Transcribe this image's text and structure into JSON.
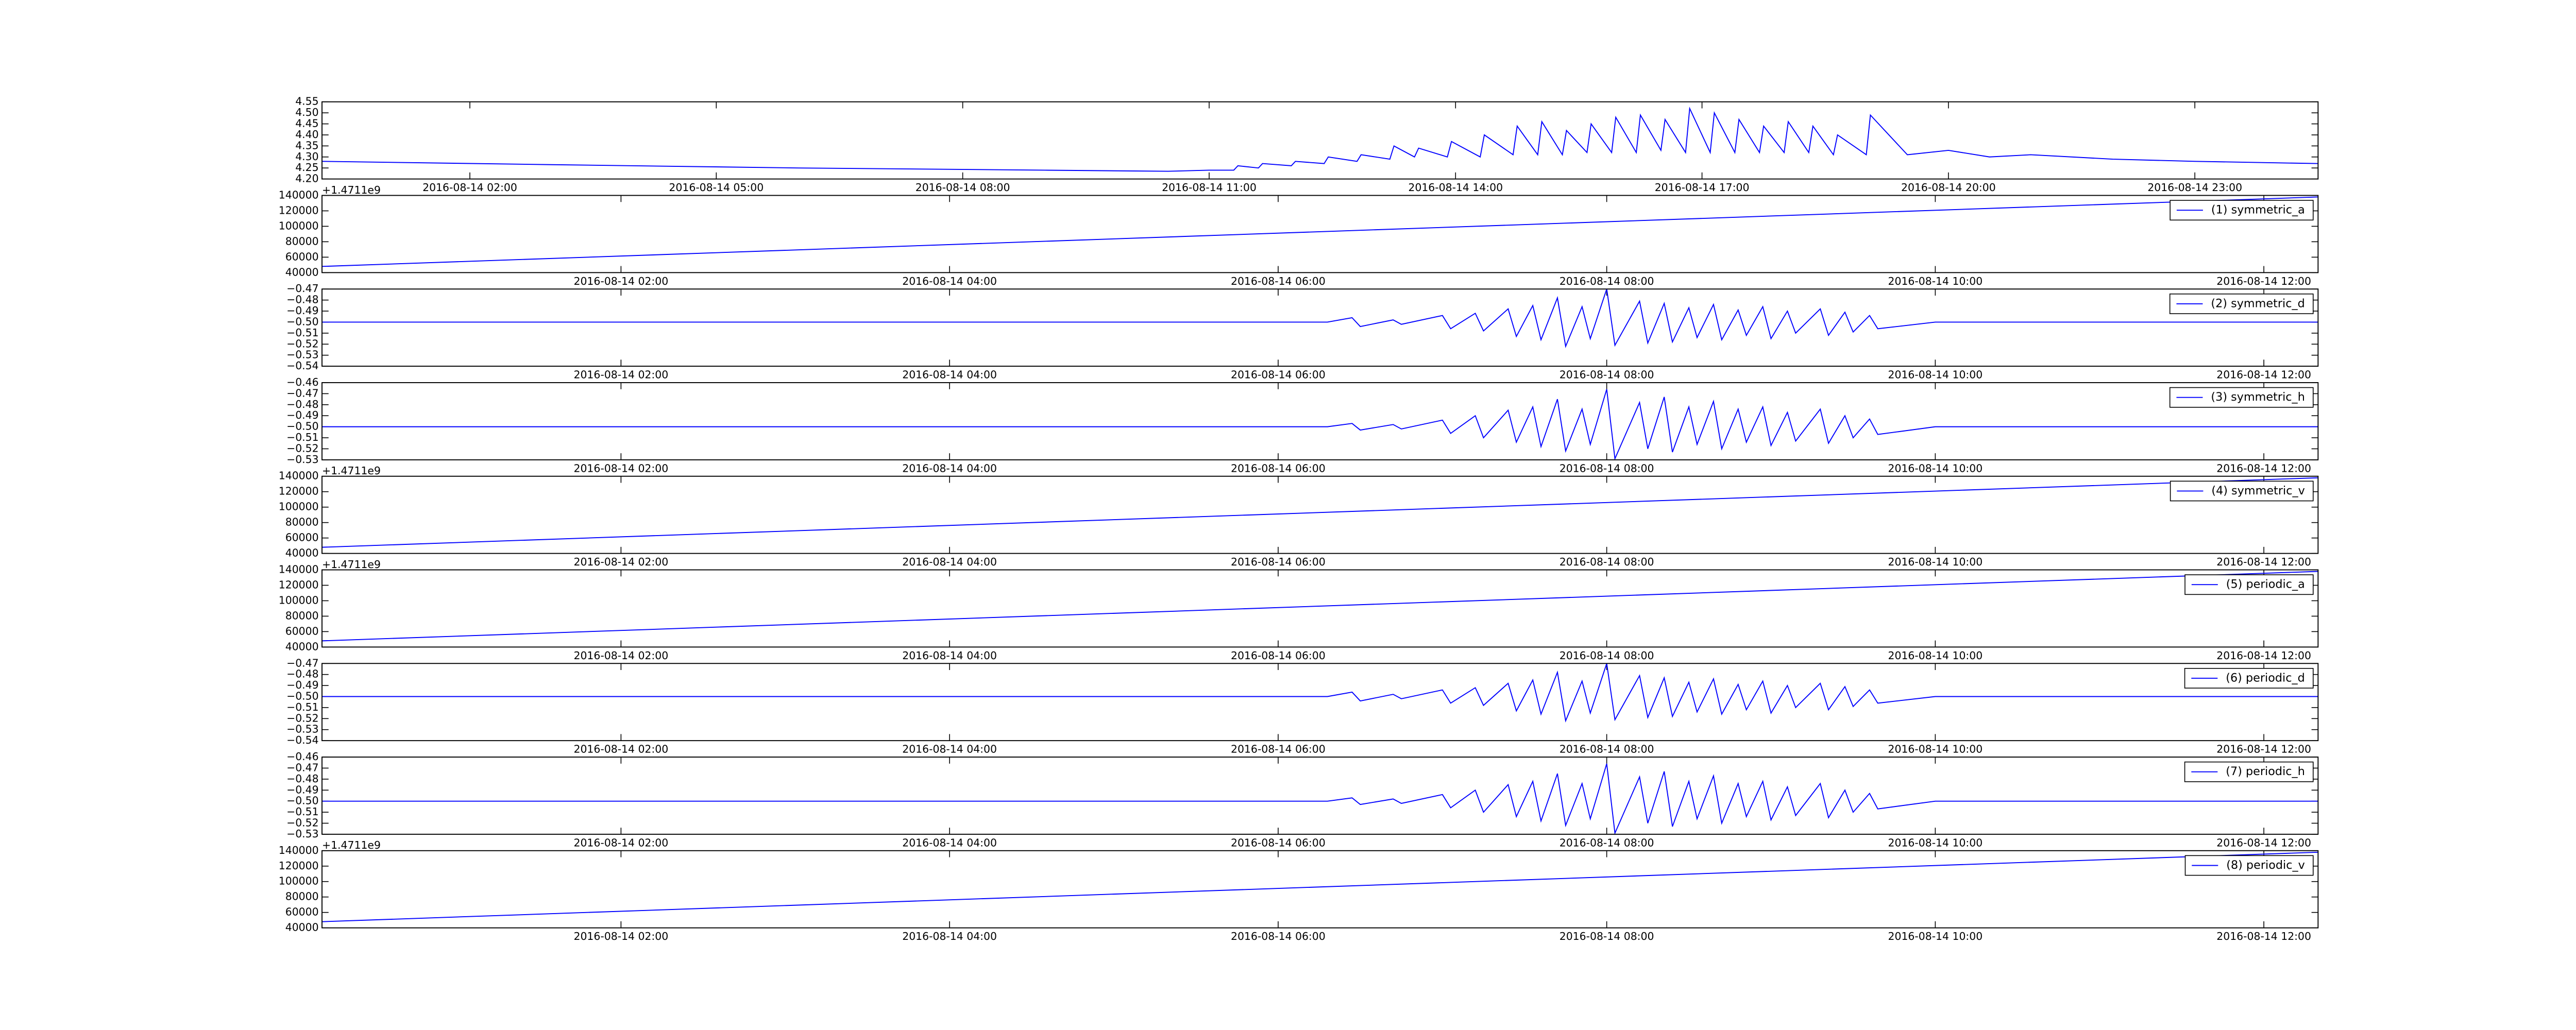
{
  "chart_data": [
    {
      "type": "line",
      "xlim": [
        0.2,
        24.5
      ],
      "ylim": [
        4.2,
        4.55
      ],
      "yticks": [
        {
          "value": 4.2,
          "label": "4.20"
        },
        {
          "value": 4.25,
          "label": "4.25"
        },
        {
          "value": 4.3,
          "label": "4.30"
        },
        {
          "value": 4.35,
          "label": "4.35"
        },
        {
          "value": 4.4,
          "label": "4.40"
        },
        {
          "value": 4.45,
          "label": "4.45"
        },
        {
          "value": 4.5,
          "label": "4.50"
        },
        {
          "value": 4.55,
          "label": "4.55"
        }
      ],
      "xticks": [
        {
          "value": 2,
          "label": "2016-08-14 02:00"
        },
        {
          "value": 5,
          "label": "2016-08-14 05:00"
        },
        {
          "value": 8,
          "label": "2016-08-14 08:00"
        },
        {
          "value": 11,
          "label": "2016-08-14 11:00"
        },
        {
          "value": 14,
          "label": "2016-08-14 14:00"
        },
        {
          "value": 17,
          "label": "2016-08-14 17:00"
        },
        {
          "value": 20,
          "label": "2016-08-14 20:00"
        },
        {
          "value": 23,
          "label": "2016-08-14 23:00"
        }
      ],
      "x": [
        0.2,
        3,
        6,
        9,
        10.5,
        11,
        11.3,
        11.35,
        11.6,
        11.65,
        12,
        12.05,
        12.4,
        12.45,
        12.8,
        12.85,
        13.2,
        13.25,
        13.5,
        13.55,
        13.9,
        13.95,
        14.3,
        14.35,
        14.7,
        14.75,
        15,
        15.05,
        15.3,
        15.35,
        15.6,
        15.65,
        15.9,
        15.95,
        16.2,
        16.25,
        16.5,
        16.55,
        16.8,
        16.85,
        17.1,
        17.15,
        17.4,
        17.45,
        17.7,
        17.75,
        18,
        18.05,
        18.3,
        18.35,
        18.6,
        18.65,
        19,
        19.05,
        19.5,
        20,
        20.5,
        21,
        22,
        23,
        24.5
      ],
      "series": [
        {
          "color": "#0000ff",
          "values": [
            4.28,
            4.265,
            4.25,
            4.24,
            4.235,
            4.24,
            4.24,
            4.26,
            4.25,
            4.27,
            4.26,
            4.28,
            4.27,
            4.3,
            4.28,
            4.31,
            4.29,
            4.35,
            4.3,
            4.34,
            4.3,
            4.37,
            4.3,
            4.4,
            4.31,
            4.44,
            4.31,
            4.46,
            4.31,
            4.42,
            4.32,
            4.45,
            4.32,
            4.48,
            4.32,
            4.49,
            4.33,
            4.47,
            4.32,
            4.52,
            4.32,
            4.5,
            4.32,
            4.47,
            4.32,
            4.44,
            4.32,
            4.46,
            4.32,
            4.44,
            4.31,
            4.4,
            4.31,
            4.49,
            4.31,
            4.33,
            4.3,
            4.31,
            4.29,
            4.28,
            4.27
          ]
        }
      ]
    },
    {
      "type": "line",
      "xlim": [
        0.18,
        12.33
      ],
      "ylim": [
        40000,
        140000
      ],
      "y_offset_text": "+1.4711e9",
      "legend": "upper right",
      "yticks": [
        40000,
        60000,
        80000,
        100000,
        120000,
        140000
      ],
      "xticks": [
        {
          "value": 2,
          "label": "2016-08-14 02:00"
        },
        {
          "value": 4,
          "label": "2016-08-14 04:00"
        },
        {
          "value": 6,
          "label": "2016-08-14 06:00"
        },
        {
          "value": 8,
          "label": "2016-08-14 08:00"
        },
        {
          "value": 10,
          "label": "2016-08-14 10:00"
        },
        {
          "value": 12,
          "label": "2016-08-14 12:00"
        }
      ],
      "x": [
        0.18,
        12.33
      ],
      "series": [
        {
          "name": "(1) symmetric_a",
          "color": "#0000ff",
          "values": [
            48000,
            138000
          ]
        }
      ]
    },
    {
      "type": "line",
      "xlim": [
        0.18,
        12.33
      ],
      "ylim": [
        -0.54,
        -0.47
      ],
      "legend": "upper right",
      "yticks": [
        {
          "value": -0.54,
          "label": "−0.54"
        },
        {
          "value": -0.53,
          "label": "−0.53"
        },
        {
          "value": -0.52,
          "label": "−0.52"
        },
        {
          "value": -0.51,
          "label": "−0.51"
        },
        {
          "value": -0.5,
          "label": "−0.50"
        },
        {
          "value": -0.49,
          "label": "−0.49"
        },
        {
          "value": -0.48,
          "label": "−0.48"
        },
        {
          "value": -0.47,
          "label": "−0.47"
        }
      ],
      "xticks": [
        {
          "value": 2,
          "label": "2016-08-14 02:00"
        },
        {
          "value": 4,
          "label": "2016-08-14 04:00"
        },
        {
          "value": 6,
          "label": "2016-08-14 06:00"
        },
        {
          "value": 8,
          "label": "2016-08-14 08:00"
        },
        {
          "value": 10,
          "label": "2016-08-14 10:00"
        },
        {
          "value": 12,
          "label": "2016-08-14 12:00"
        }
      ],
      "x": [
        0.18,
        6.3,
        6.45,
        6.5,
        6.7,
        6.75,
        7.0,
        7.05,
        7.2,
        7.25,
        7.4,
        7.45,
        7.55,
        7.6,
        7.7,
        7.75,
        7.85,
        7.9,
        8.0,
        8.05,
        8.2,
        8.25,
        8.35,
        8.4,
        8.5,
        8.55,
        8.65,
        8.7,
        8.8,
        8.85,
        8.95,
        9.0,
        9.1,
        9.15,
        9.3,
        9.35,
        9.45,
        9.5,
        9.6,
        9.65,
        10.0,
        12.33
      ],
      "series": [
        {
          "name": "(2) symmetric_d",
          "color": "#0000ff",
          "values": [
            -0.5,
            -0.5,
            -0.496,
            -0.504,
            -0.498,
            -0.502,
            -0.494,
            -0.506,
            -0.492,
            -0.508,
            -0.488,
            -0.513,
            -0.485,
            -0.516,
            -0.478,
            -0.522,
            -0.486,
            -0.515,
            -0.47,
            -0.521,
            -0.481,
            -0.519,
            -0.483,
            -0.518,
            -0.487,
            -0.514,
            -0.484,
            -0.516,
            -0.489,
            -0.512,
            -0.486,
            -0.515,
            -0.49,
            -0.51,
            -0.488,
            -0.512,
            -0.491,
            -0.509,
            -0.494,
            -0.506,
            -0.5,
            -0.5
          ]
        }
      ]
    },
    {
      "type": "line",
      "xlim": [
        0.18,
        12.33
      ],
      "ylim": [
        -0.53,
        -0.46
      ],
      "legend": "upper right",
      "yticks": [
        {
          "value": -0.53,
          "label": "−0.53"
        },
        {
          "value": -0.52,
          "label": "−0.52"
        },
        {
          "value": -0.51,
          "label": "−0.51"
        },
        {
          "value": -0.5,
          "label": "−0.50"
        },
        {
          "value": -0.49,
          "label": "−0.49"
        },
        {
          "value": -0.48,
          "label": "−0.48"
        },
        {
          "value": -0.47,
          "label": "−0.47"
        },
        {
          "value": -0.46,
          "label": "−0.46"
        }
      ],
      "xticks": [
        {
          "value": 2,
          "label": "2016-08-14 02:00"
        },
        {
          "value": 4,
          "label": "2016-08-14 04:00"
        },
        {
          "value": 6,
          "label": "2016-08-14 06:00"
        },
        {
          "value": 8,
          "label": "2016-08-14 08:00"
        },
        {
          "value": 10,
          "label": "2016-08-14 10:00"
        },
        {
          "value": 12,
          "label": "2016-08-14 12:00"
        }
      ],
      "x": [
        0.18,
        6.3,
        6.45,
        6.5,
        6.7,
        6.75,
        7.0,
        7.05,
        7.2,
        7.25,
        7.4,
        7.45,
        7.55,
        7.6,
        7.7,
        7.75,
        7.85,
        7.9,
        8.0,
        8.05,
        8.2,
        8.25,
        8.35,
        8.4,
        8.5,
        8.55,
        8.65,
        8.7,
        8.8,
        8.85,
        8.95,
        9.0,
        9.1,
        9.15,
        9.3,
        9.35,
        9.45,
        9.5,
        9.6,
        9.65,
        10.0,
        12.33
      ],
      "series": [
        {
          "name": "(3) symmetric_h",
          "color": "#0000ff",
          "values": [
            -0.5,
            -0.5,
            -0.497,
            -0.503,
            -0.498,
            -0.502,
            -0.494,
            -0.506,
            -0.49,
            -0.51,
            -0.485,
            -0.514,
            -0.482,
            -0.518,
            -0.475,
            -0.522,
            -0.484,
            -0.516,
            -0.466,
            -0.529,
            -0.478,
            -0.52,
            -0.473,
            -0.523,
            -0.482,
            -0.516,
            -0.477,
            -0.52,
            -0.484,
            -0.514,
            -0.482,
            -0.517,
            -0.487,
            -0.513,
            -0.484,
            -0.515,
            -0.49,
            -0.51,
            -0.493,
            -0.507,
            -0.5,
            -0.5
          ]
        }
      ]
    },
    {
      "type": "line",
      "xlim": [
        0.18,
        12.33
      ],
      "ylim": [
        40000,
        140000
      ],
      "y_offset_text": "+1.4711e9",
      "legend": "upper right",
      "yticks": [
        40000,
        60000,
        80000,
        100000,
        120000,
        140000
      ],
      "xticks": [
        {
          "value": 2,
          "label": "2016-08-14 02:00"
        },
        {
          "value": 4,
          "label": "2016-08-14 04:00"
        },
        {
          "value": 6,
          "label": "2016-08-14 06:00"
        },
        {
          "value": 8,
          "label": "2016-08-14 08:00"
        },
        {
          "value": 10,
          "label": "2016-08-14 10:00"
        },
        {
          "value": 12,
          "label": "2016-08-14 12:00"
        }
      ],
      "x": [
        0.18,
        12.33
      ],
      "series": [
        {
          "name": "(4) symmetric_v",
          "color": "#0000ff",
          "values": [
            48000,
            138000
          ]
        }
      ]
    },
    {
      "type": "line",
      "xlim": [
        0.18,
        12.33
      ],
      "ylim": [
        40000,
        140000
      ],
      "y_offset_text": "+1.4711e9",
      "legend": "upper right",
      "yticks": [
        40000,
        60000,
        80000,
        100000,
        120000,
        140000
      ],
      "xticks": [
        {
          "value": 2,
          "label": "2016-08-14 02:00"
        },
        {
          "value": 4,
          "label": "2016-08-14 04:00"
        },
        {
          "value": 6,
          "label": "2016-08-14 06:00"
        },
        {
          "value": 8,
          "label": "2016-08-14 08:00"
        },
        {
          "value": 10,
          "label": "2016-08-14 10:00"
        },
        {
          "value": 12,
          "label": "2016-08-14 12:00"
        }
      ],
      "x": [
        0.18,
        12.33
      ],
      "series": [
        {
          "name": "(5) periodic_a",
          "color": "#0000ff",
          "values": [
            48000,
            138000
          ]
        }
      ]
    },
    {
      "type": "line",
      "xlim": [
        0.18,
        12.33
      ],
      "ylim": [
        -0.54,
        -0.47
      ],
      "legend": "upper right",
      "yticks": [
        {
          "value": -0.54,
          "label": "−0.54"
        },
        {
          "value": -0.53,
          "label": "−0.53"
        },
        {
          "value": -0.52,
          "label": "−0.52"
        },
        {
          "value": -0.51,
          "label": "−0.51"
        },
        {
          "value": -0.5,
          "label": "−0.50"
        },
        {
          "value": -0.49,
          "label": "−0.49"
        },
        {
          "value": -0.48,
          "label": "−0.48"
        },
        {
          "value": -0.47,
          "label": "−0.47"
        }
      ],
      "xticks": [
        {
          "value": 2,
          "label": "2016-08-14 02:00"
        },
        {
          "value": 4,
          "label": "2016-08-14 04:00"
        },
        {
          "value": 6,
          "label": "2016-08-14 06:00"
        },
        {
          "value": 8,
          "label": "2016-08-14 08:00"
        },
        {
          "value": 10,
          "label": "2016-08-14 10:00"
        },
        {
          "value": 12,
          "label": "2016-08-14 12:00"
        }
      ],
      "x": [
        0.18,
        6.3,
        6.45,
        6.5,
        6.7,
        6.75,
        7.0,
        7.05,
        7.2,
        7.25,
        7.4,
        7.45,
        7.55,
        7.6,
        7.7,
        7.75,
        7.85,
        7.9,
        8.0,
        8.05,
        8.2,
        8.25,
        8.35,
        8.4,
        8.5,
        8.55,
        8.65,
        8.7,
        8.8,
        8.85,
        8.95,
        9.0,
        9.1,
        9.15,
        9.3,
        9.35,
        9.45,
        9.5,
        9.6,
        9.65,
        10.0,
        12.33
      ],
      "series": [
        {
          "name": "(6) periodic_d",
          "color": "#0000ff",
          "values": [
            -0.5,
            -0.5,
            -0.496,
            -0.504,
            -0.498,
            -0.502,
            -0.494,
            -0.506,
            -0.492,
            -0.508,
            -0.488,
            -0.513,
            -0.485,
            -0.516,
            -0.478,
            -0.522,
            -0.486,
            -0.515,
            -0.47,
            -0.521,
            -0.481,
            -0.519,
            -0.483,
            -0.518,
            -0.487,
            -0.514,
            -0.484,
            -0.516,
            -0.489,
            -0.512,
            -0.486,
            -0.515,
            -0.49,
            -0.51,
            -0.488,
            -0.512,
            -0.491,
            -0.509,
            -0.494,
            -0.506,
            -0.5,
            -0.5
          ]
        }
      ]
    },
    {
      "type": "line",
      "xlim": [
        0.18,
        12.33
      ],
      "ylim": [
        -0.53,
        -0.46
      ],
      "legend": "upper right",
      "yticks": [
        {
          "value": -0.53,
          "label": "−0.53"
        },
        {
          "value": -0.52,
          "label": "−0.52"
        },
        {
          "value": -0.51,
          "label": "−0.51"
        },
        {
          "value": -0.5,
          "label": "−0.50"
        },
        {
          "value": -0.49,
          "label": "−0.49"
        },
        {
          "value": -0.48,
          "label": "−0.48"
        },
        {
          "value": -0.47,
          "label": "−0.47"
        },
        {
          "value": -0.46,
          "label": "−0.46"
        }
      ],
      "xticks": [
        {
          "value": 2,
          "label": "2016-08-14 02:00"
        },
        {
          "value": 4,
          "label": "2016-08-14 04:00"
        },
        {
          "value": 6,
          "label": "2016-08-14 06:00"
        },
        {
          "value": 8,
          "label": "2016-08-14 08:00"
        },
        {
          "value": 10,
          "label": "2016-08-14 10:00"
        },
        {
          "value": 12,
          "label": "2016-08-14 12:00"
        }
      ],
      "x": [
        0.18,
        6.3,
        6.45,
        6.5,
        6.7,
        6.75,
        7.0,
        7.05,
        7.2,
        7.25,
        7.4,
        7.45,
        7.55,
        7.6,
        7.7,
        7.75,
        7.85,
        7.9,
        8.0,
        8.05,
        8.2,
        8.25,
        8.35,
        8.4,
        8.5,
        8.55,
        8.65,
        8.7,
        8.8,
        8.85,
        8.95,
        9.0,
        9.1,
        9.15,
        9.3,
        9.35,
        9.45,
        9.5,
        9.6,
        9.65,
        10.0,
        12.33
      ],
      "series": [
        {
          "name": "(7) periodic_h",
          "color": "#0000ff",
          "values": [
            -0.5,
            -0.5,
            -0.497,
            -0.503,
            -0.498,
            -0.502,
            -0.494,
            -0.506,
            -0.49,
            -0.51,
            -0.485,
            -0.514,
            -0.482,
            -0.518,
            -0.475,
            -0.522,
            -0.484,
            -0.516,
            -0.466,
            -0.529,
            -0.478,
            -0.52,
            -0.473,
            -0.523,
            -0.482,
            -0.516,
            -0.477,
            -0.52,
            -0.484,
            -0.514,
            -0.482,
            -0.517,
            -0.487,
            -0.513,
            -0.484,
            -0.515,
            -0.49,
            -0.51,
            -0.493,
            -0.507,
            -0.5,
            -0.5
          ]
        }
      ]
    },
    {
      "type": "line",
      "xlim": [
        0.18,
        12.33
      ],
      "ylim": [
        40000,
        140000
      ],
      "y_offset_text": "+1.4711e9",
      "legend": "upper right",
      "yticks": [
        40000,
        60000,
        80000,
        100000,
        120000,
        140000
      ],
      "xticks": [
        {
          "value": 2,
          "label": "2016-08-14 02:00"
        },
        {
          "value": 4,
          "label": "2016-08-14 04:00"
        },
        {
          "value": 6,
          "label": "2016-08-14 06:00"
        },
        {
          "value": 8,
          "label": "2016-08-14 08:00"
        },
        {
          "value": 10,
          "label": "2016-08-14 10:00"
        },
        {
          "value": 12,
          "label": "2016-08-14 12:00"
        }
      ],
      "x": [
        0.18,
        12.33
      ],
      "series": [
        {
          "name": "(8) periodic_v",
          "color": "#0000ff",
          "values": [
            48000,
            138000
          ]
        }
      ]
    }
  ]
}
